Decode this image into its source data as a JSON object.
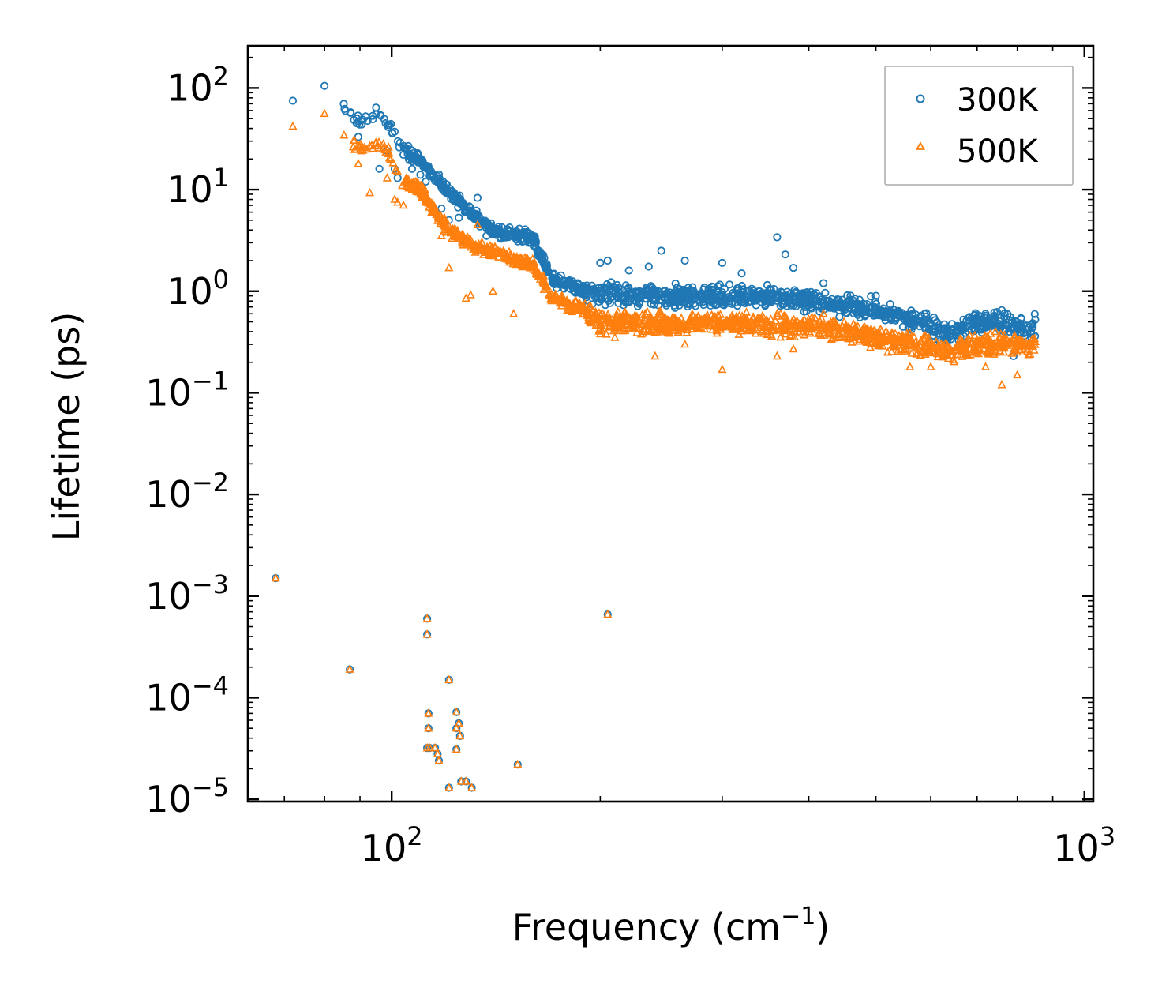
{
  "chart_data": {
    "type": "scatter",
    "title": "",
    "xlabel_base": "Frequency (cm",
    "xlabel_sup": "−1",
    "xlabel_end": ")",
    "ylabel": "Lifetime (ps)",
    "xscale": "log",
    "yscale": "log",
    "xlim": [
      62,
      1030
    ],
    "ylim": [
      9.5e-06,
      260
    ],
    "x_tick_labels": [
      {
        "value": 100,
        "base": "10",
        "exp": "2"
      },
      {
        "value": 1000,
        "base": "10",
        "exp": "3"
      }
    ],
    "y_tick_labels": [
      {
        "value": 100,
        "base": "10",
        "exp": "2"
      },
      {
        "value": 10,
        "base": "10",
        "exp": "1"
      },
      {
        "value": 1,
        "base": "10",
        "exp": "0"
      },
      {
        "value": 0.1,
        "base": "10",
        "exp": "−1"
      },
      {
        "value": 0.01,
        "base": "10",
        "exp": "−2"
      },
      {
        "value": 0.001,
        "base": "10",
        "exp": "−3"
      },
      {
        "value": 0.0001,
        "base": "10",
        "exp": "−4"
      },
      {
        "value": 1e-05,
        "base": "10",
        "exp": "−5"
      }
    ],
    "legend_position": "top-right",
    "series": [
      {
        "name": "300K",
        "marker": "circle",
        "color": "#1f77b4",
        "outliers": [
          [
            68,
            0.0015
          ],
          [
            87,
            0.00019
          ],
          [
            112.5,
            0.0006
          ],
          [
            112.5,
            0.00042
          ],
          [
            113,
            7e-05
          ],
          [
            113,
            5e-05
          ],
          [
            112.5,
            3.2e-05
          ],
          [
            113.5,
            3.2e-05
          ],
          [
            115.5,
            3.2e-05
          ],
          [
            116.5,
            2.8e-05
          ],
          [
            117,
            2.4e-05
          ],
          [
            121,
            0.00015
          ],
          [
            121,
            1.3e-05
          ],
          [
            124,
            7.2e-05
          ],
          [
            124,
            5e-05
          ],
          [
            124,
            3.1e-05
          ],
          [
            125,
            5.6e-05
          ],
          [
            125.5,
            4.2e-05
          ],
          [
            126,
            1.5e-05
          ],
          [
            128,
            1.5e-05
          ],
          [
            130.5,
            1.3e-05
          ],
          [
            152,
            2.2e-05
          ],
          [
            205,
            0.00066
          ]
        ],
        "anchors": [
          [
            70,
            75
          ],
          [
            80,
            105
          ],
          [
            90,
            45
          ],
          [
            95,
            55
          ],
          [
            99,
            45
          ],
          [
            103,
            26
          ],
          [
            110,
            19
          ],
          [
            120,
            10
          ],
          [
            130,
            6
          ],
          [
            140,
            4
          ],
          [
            150,
            3.6
          ],
          [
            160,
            3.3
          ],
          [
            170,
            1.3
          ],
          [
            185,
            1.05
          ],
          [
            200,
            0.95
          ],
          [
            250,
            0.9
          ],
          [
            300,
            0.9
          ],
          [
            350,
            0.88
          ],
          [
            400,
            0.8
          ],
          [
            450,
            0.72
          ],
          [
            500,
            0.65
          ],
          [
            550,
            0.55
          ],
          [
            600,
            0.45
          ],
          [
            640,
            0.38
          ],
          [
            700,
            0.5
          ],
          [
            800,
            0.45
          ],
          [
            850,
            0.45
          ]
        ],
        "highlights": [
          [
            72,
            75
          ],
          [
            80,
            105
          ],
          [
            89,
            45
          ],
          [
            89.5,
            33
          ],
          [
            95,
            55
          ],
          [
            96,
            16
          ],
          [
            98,
            45
          ],
          [
            98.5,
            24
          ],
          [
            101,
            16
          ],
          [
            102,
            13
          ],
          [
            104,
            22
          ],
          [
            105,
            25
          ],
          [
            107,
            19
          ],
          [
            107,
            16
          ],
          [
            110,
            14
          ],
          [
            112,
            12
          ],
          [
            118,
            6.5
          ],
          [
            121,
            5
          ],
          [
            125,
            5.3
          ],
          [
            130,
            5.5
          ],
          [
            133,
            8.3
          ],
          [
            137,
            3.5
          ],
          [
            160,
            3.5
          ],
          [
            200,
            1.9
          ],
          [
            205,
            2.0
          ],
          [
            220,
            1.6
          ],
          [
            235,
            1.75
          ],
          [
            245,
            2.5
          ],
          [
            265,
            2.0
          ],
          [
            300,
            1.9
          ],
          [
            320,
            1.5
          ],
          [
            360,
            3.4
          ],
          [
            370,
            2.3
          ],
          [
            380,
            1.7
          ],
          [
            420,
            1.2
          ],
          [
            500,
            0.9
          ],
          [
            560,
            0.3
          ],
          [
            720,
            0.6
          ],
          [
            760,
            0.65
          ],
          [
            790,
            0.23
          ]
        ]
      },
      {
        "name": "500K",
        "marker": "triangle",
        "color": "#ff7f0e",
        "outliers": [
          [
            68,
            0.0015
          ],
          [
            87,
            0.00019
          ],
          [
            112.5,
            0.0006
          ],
          [
            112.5,
            0.00042
          ],
          [
            113,
            7e-05
          ],
          [
            113,
            5e-05
          ],
          [
            112.5,
            3.2e-05
          ],
          [
            113.5,
            3.2e-05
          ],
          [
            115.5,
            3.2e-05
          ],
          [
            116.5,
            2.8e-05
          ],
          [
            117,
            2.4e-05
          ],
          [
            121,
            0.00015
          ],
          [
            121,
            1.3e-05
          ],
          [
            124,
            7.2e-05
          ],
          [
            124,
            5e-05
          ],
          [
            124,
            3.1e-05
          ],
          [
            125,
            5.6e-05
          ],
          [
            125.5,
            4.2e-05
          ],
          [
            126,
            1.5e-05
          ],
          [
            128,
            1.5e-05
          ],
          [
            130.5,
            1.3e-05
          ],
          [
            152,
            2.2e-05
          ],
          [
            205,
            0.00066
          ]
        ],
        "anchors": [
          [
            70,
            42
          ],
          [
            80,
            56
          ],
          [
            90,
            25
          ],
          [
            95,
            29
          ],
          [
            99,
            23
          ],
          [
            103,
            12
          ],
          [
            110,
            10
          ],
          [
            120,
            4.2
          ],
          [
            130,
            2.9
          ],
          [
            140,
            2.4
          ],
          [
            150,
            2.1
          ],
          [
            160,
            1.8
          ],
          [
            170,
            0.9
          ],
          [
            185,
            0.7
          ],
          [
            200,
            0.5
          ],
          [
            250,
            0.48
          ],
          [
            300,
            0.48
          ],
          [
            350,
            0.46
          ],
          [
            400,
            0.45
          ],
          [
            450,
            0.4
          ],
          [
            500,
            0.36
          ],
          [
            550,
            0.32
          ],
          [
            600,
            0.28
          ],
          [
            640,
            0.26
          ],
          [
            700,
            0.3
          ],
          [
            800,
            0.3
          ],
          [
            850,
            0.3
          ]
        ],
        "highlights": [
          [
            72,
            42
          ],
          [
            80,
            56
          ],
          [
            89,
            25
          ],
          [
            89.5,
            18
          ],
          [
            93,
            9.3
          ],
          [
            95,
            29
          ],
          [
            98,
            23
          ],
          [
            98.5,
            13
          ],
          [
            101,
            8
          ],
          [
            102,
            7.5
          ],
          [
            104,
            7
          ],
          [
            105,
            13
          ],
          [
            107,
            10
          ],
          [
            110,
            9
          ],
          [
            112,
            7.5
          ],
          [
            118,
            3.5
          ],
          [
            121,
            1.7
          ],
          [
            128,
            0.85
          ],
          [
            130,
            0.92
          ],
          [
            133,
            4.5
          ],
          [
            140,
            1.0
          ],
          [
            150,
            0.6
          ],
          [
            200,
            0.38
          ],
          [
            210,
            0.35
          ],
          [
            240,
            0.23
          ],
          [
            265,
            0.3
          ],
          [
            300,
            0.17
          ],
          [
            360,
            0.23
          ],
          [
            380,
            0.27
          ],
          [
            420,
            0.6
          ],
          [
            450,
            0.5
          ],
          [
            520,
            0.25
          ],
          [
            560,
            0.18
          ],
          [
            600,
            0.18
          ],
          [
            720,
            0.18
          ],
          [
            760,
            0.12
          ],
          [
            800,
            0.15
          ],
          [
            840,
            0.3
          ]
        ]
      }
    ]
  }
}
